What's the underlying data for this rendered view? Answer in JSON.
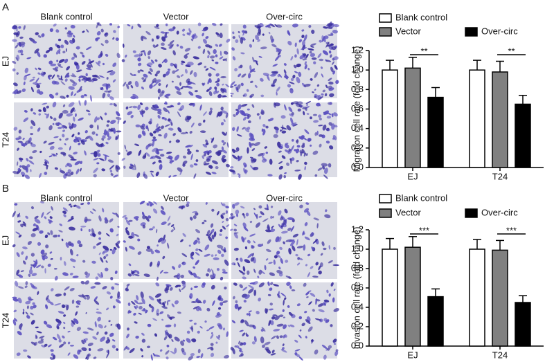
{
  "panels": [
    {
      "label": "A",
      "columns": [
        "Blank control",
        "Vector",
        "Over-circ"
      ],
      "rows": [
        "EJ",
        "T24"
      ]
    },
    {
      "label": "B",
      "columns": [
        "Blank control",
        "Vector",
        "Over-circ"
      ],
      "rows": [
        "EJ",
        "T24"
      ]
    }
  ],
  "chart_data": [
    {
      "type": "bar",
      "y_label": "Migration cell rate (fold change)",
      "categories": [
        "EJ",
        "T24"
      ],
      "series": [
        {
          "name": "Blank control",
          "color": "#ffffff",
          "values": [
            1.0,
            1.0
          ],
          "errors": [
            0.1,
            0.1
          ]
        },
        {
          "name": "Vector",
          "color": "#808080",
          "values": [
            1.02,
            0.98
          ],
          "errors": [
            0.11,
            0.11
          ]
        },
        {
          "name": "Over-circ",
          "color": "#000000",
          "values": [
            0.72,
            0.65
          ],
          "errors": [
            0.1,
            0.09
          ]
        }
      ],
      "significance": [
        "**",
        "**"
      ],
      "ylim": [
        0,
        1.2
      ],
      "yticks": [
        {
          "value": 0,
          "label": "0.0"
        },
        0.2,
        0.4,
        0.6,
        0.8,
        {
          "value": 1,
          "label": "1.0"
        },
        1.2
      ]
    },
    {
      "type": "bar",
      "y_label": "Invasion cell rate (fold change)",
      "categories": [
        "EJ",
        "T24"
      ],
      "series": [
        {
          "name": "Blank control",
          "color": "#ffffff",
          "values": [
            1.0,
            1.0
          ],
          "errors": [
            0.11,
            0.1
          ]
        },
        {
          "name": "Vector",
          "color": "#808080",
          "values": [
            1.02,
            0.99
          ],
          "errors": [
            0.11,
            0.1
          ]
        },
        {
          "name": "Over-circ",
          "color": "#000000",
          "values": [
            0.51,
            0.45
          ],
          "errors": [
            0.08,
            0.07
          ]
        }
      ],
      "significance": [
        "***",
        "***"
      ],
      "ylim": [
        0,
        1.2
      ],
      "yticks": [
        {
          "value": 0,
          "label": "0.0"
        },
        0.2,
        0.4,
        0.6,
        0.8,
        {
          "value": 1,
          "label": "1.0"
        },
        1.2
      ]
    }
  ]
}
